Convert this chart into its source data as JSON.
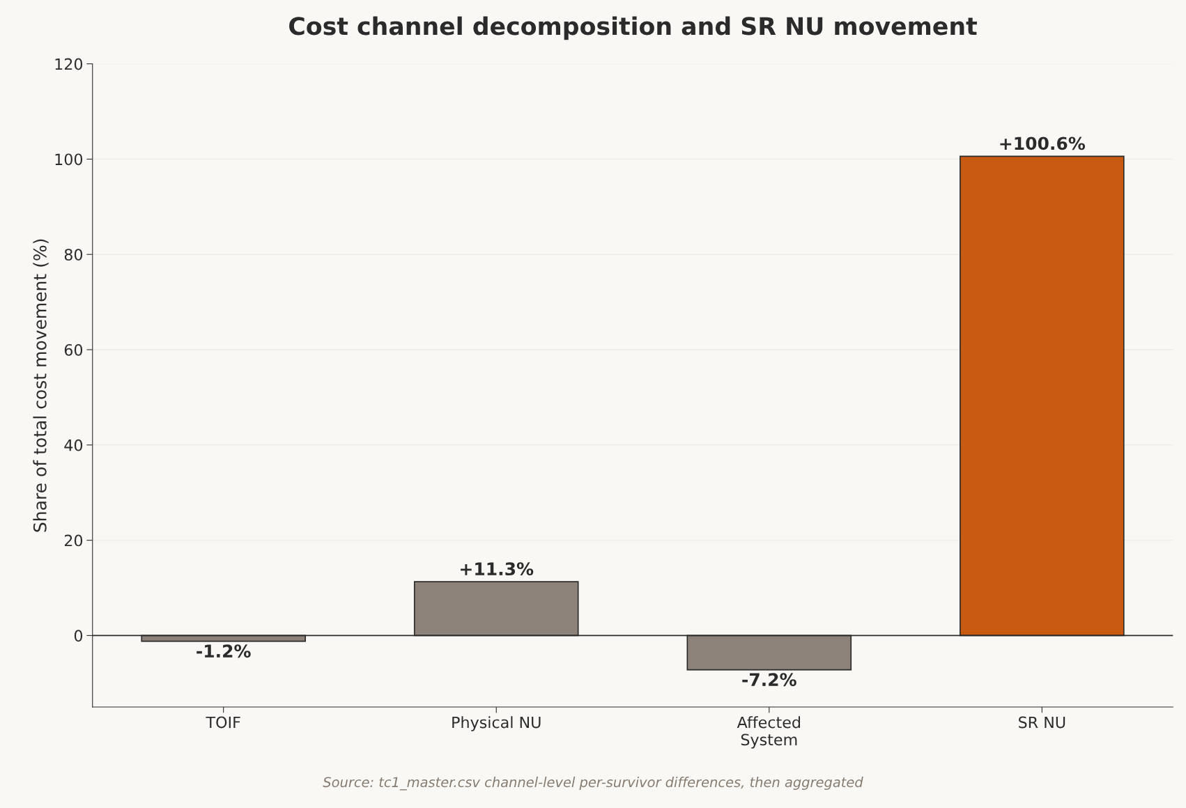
{
  "chart_data": {
    "type": "bar",
    "title": "Cost channel decomposition and SR NU movement",
    "ylabel": "Share of total cost movement (%)",
    "categories": [
      "TOIF",
      "Physical NU",
      "Affected\nSystem",
      "SR NU"
    ],
    "values": [
      -1.2,
      11.3,
      -7.2,
      100.6
    ],
    "colors": [
      "#8c8279",
      "#8c8279",
      "#8c8279",
      "#c85a12"
    ],
    "value_labels": [
      "-1.2%",
      "+11.3%",
      "-7.2%",
      "+100.6%"
    ],
    "ylim": [
      -15,
      120
    ],
    "yticks": [
      0,
      20,
      40,
      60,
      80,
      100,
      120
    ],
    "grid": "y",
    "ref_lines": [
      {
        "axis": "y",
        "value": 0,
        "label": null,
        "color": "#2b2b2b"
      }
    ],
    "annotations": [
      "Source: tc1_master.csv channel-level per-survivor differences, then aggregated"
    ]
  }
}
